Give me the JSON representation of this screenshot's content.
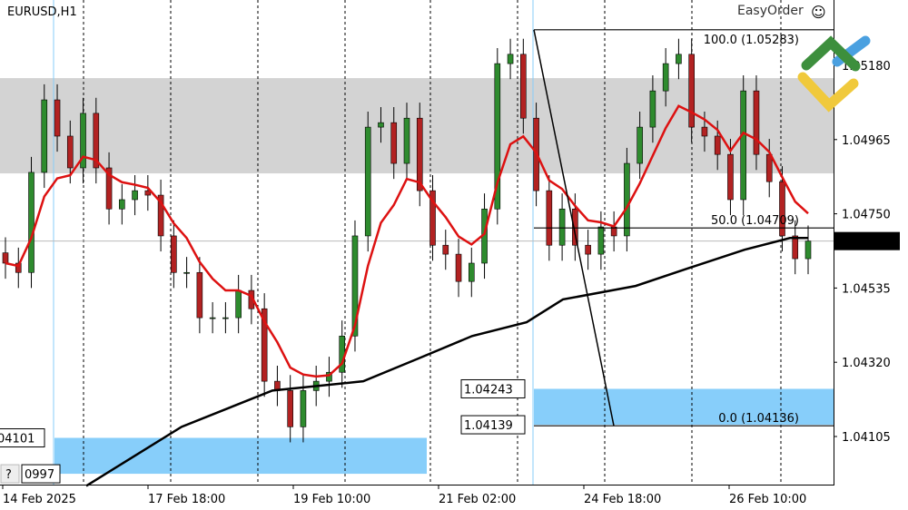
{
  "symbol_title": "EURUSD,H1",
  "plugin_label": "EasyOrder",
  "plugin_icon": "smiley-icon",
  "logo": "green-yellow-blue-chevron-logo",
  "price_axis": {
    "ticks": [
      "1.05180",
      "1.04965",
      "1.04750",
      "1.04535",
      "1.04320",
      "1.04105"
    ],
    "current_price": "1.04671"
  },
  "time_axis": {
    "ticks": [
      "14 Feb 2025",
      "17 Feb 18:00",
      "19 Feb 10:00",
      "21 Feb 02:00",
      "24 Feb 18:00",
      "26 Feb 10:00"
    ]
  },
  "fibonacci": {
    "levels": [
      {
        "label": "100.0 (1.05283)",
        "price": 1.05283
      },
      {
        "label": "50.0 (1.04709)",
        "price": 1.04709
      },
      {
        "label": "0.0 (1.04136)",
        "price": 1.04136
      }
    ]
  },
  "zones": {
    "resistance": {
      "from": 1.05143,
      "to": 1.04867,
      "color": "#d3d3d3"
    },
    "support_left": {
      "from": 1.04101,
      "to": 1.03997,
      "labels": [
        "04101",
        "?",
        "0997"
      ],
      "color": "#87cefa"
    },
    "support_right": {
      "from": 1.04243,
      "to": 1.04139,
      "labels": [
        "1.04243",
        "1.04139"
      ],
      "color": "#87cefa"
    }
  },
  "colors": {
    "bull": "#2e8b2e",
    "bear": "#b22222",
    "fast_ma": "#dd1111",
    "slow_ma": "#000000"
  },
  "chart_data": {
    "type": "candlestick",
    "closes": [
      1.04607,
      1.0458,
      1.0487,
      1.0508,
      1.04975,
      1.04883,
      1.05041,
      1.04883,
      1.04764,
      1.04791,
      1.04817,
      1.04804,
      1.04686,
      1.0458,
      1.0458,
      1.04449,
      1.04449,
      1.04449,
      1.04528,
      1.04475,
      1.04265,
      1.04238,
      1.04133,
      1.04238,
      1.04265,
      1.04291,
      1.04396,
      1.04686,
      1.05001,
      1.05014,
      1.04896,
      1.05027,
      1.04817,
      1.04659,
      1.04633,
      1.04554,
      1.04607,
      1.04764,
      1.05185,
      1.05212,
      1.05027,
      1.04817,
      1.04659,
      1.04764,
      1.04659,
      1.04633,
      1.04712,
      1.04686,
      1.04896,
      1.05001,
      1.05106,
      1.05185,
      1.05212,
      1.05001,
      1.04975,
      1.04922,
      1.04791,
      1.05106,
      1.04922,
      1.04843,
      1.04686,
      1.0462,
      1.04671
    ],
    "slow_ma": [
      1.03962,
      1.04133,
      1.04238,
      1.04265,
      1.0433,
      1.04396,
      1.04436,
      1.04502,
      1.04541,
      1.04594,
      1.04646,
      1.0468,
      1.0468
    ],
    "ylim": [
      1.0394,
      1.0534
    ]
  }
}
